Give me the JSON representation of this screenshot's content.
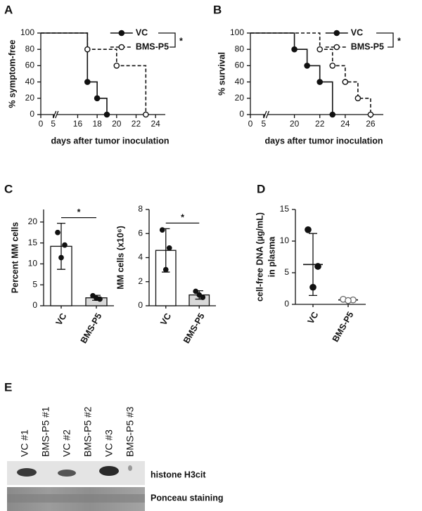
{
  "chart_data": [
    {
      "type": "step",
      "panel": "A",
      "ylabel": "% symptom-free",
      "xlabel": "days after tumor inoculation",
      "xlim": [
        0,
        25
      ],
      "xticks": [
        0,
        5,
        16,
        18,
        20,
        22,
        24
      ],
      "ylim": [
        0,
        100
      ],
      "yticks": [
        0,
        20,
        40,
        60,
        80,
        100
      ],
      "significance": "*",
      "series": [
        {
          "name": "VC",
          "color": "#111111",
          "line_style": "solid",
          "marker": "filled",
          "x": [
            0,
            17,
            18,
            19
          ],
          "values": [
            100,
            40,
            20,
            0
          ]
        },
        {
          "name": "BMS-P5",
          "color": "#111111",
          "line_style": "dashed",
          "marker": "open",
          "x": [
            0,
            17,
            20,
            23
          ],
          "values": [
            100,
            80,
            60,
            0
          ]
        }
      ]
    },
    {
      "type": "step",
      "panel": "B",
      "ylabel": "% survival",
      "xlabel": "days after tumor inoculation",
      "xlim": [
        0,
        27
      ],
      "xticks": [
        0,
        5,
        20,
        22,
        24,
        26
      ],
      "ylim": [
        0,
        100
      ],
      "yticks": [
        0,
        20,
        40,
        60,
        80,
        100
      ],
      "significance": "*",
      "series": [
        {
          "name": "VC",
          "color": "#111111",
          "line_style": "solid",
          "marker": "filled",
          "x": [
            0,
            20,
            21,
            22,
            23
          ],
          "values": [
            100,
            80,
            60,
            40,
            0
          ]
        },
        {
          "name": "BMS-P5",
          "color": "#111111",
          "line_style": "dashed",
          "marker": "open",
          "x": [
            0,
            22,
            23,
            24,
            25,
            26
          ],
          "values": [
            100,
            80,
            60,
            40,
            20,
            0
          ]
        }
      ]
    },
    {
      "type": "bar",
      "panel": "C",
      "ylabel": "Percent MM cells",
      "categories": [
        "VC",
        "BMS-P5"
      ],
      "values": [
        14.2,
        1.9
      ],
      "errors": [
        5.5,
        0.6
      ],
      "points": [
        [
          17.5,
          14.5,
          11.5
        ],
        [
          2.4,
          1.6,
          1.8
        ]
      ],
      "colors": [
        "#ffffff",
        "#d9d9d9"
      ],
      "ylim": [
        0,
        23
      ],
      "yticks": [
        0,
        5,
        10,
        15,
        20
      ],
      "significance": "*"
    },
    {
      "type": "bar",
      "ylabel": "MM cells (x10⁶)",
      "categories": [
        "VC",
        "BMS-P5"
      ],
      "values": [
        4.6,
        0.9
      ],
      "errors": [
        1.8,
        0.35
      ],
      "points": [
        [
          6.3,
          4.8,
          3.0
        ],
        [
          1.2,
          0.7,
          0.9
        ]
      ],
      "colors": [
        "#ffffff",
        "#d9d9d9"
      ],
      "ylim": [
        0,
        8
      ],
      "yticks": [
        0,
        2,
        4,
        6,
        8
      ],
      "significance": "*"
    },
    {
      "type": "dot",
      "panel": "D",
      "ylabel": [
        "cell-free DNA (µg/mL)",
        "in plasma"
      ],
      "categories": [
        "VC",
        "BMS-P5"
      ],
      "values": [
        6.3,
        0.7
      ],
      "errors": [
        4.9,
        0.1
      ],
      "points": [
        [
          11.8,
          6.0,
          2.7
        ],
        [
          0.8,
          0.7,
          0.6
        ]
      ],
      "markers": [
        "filled",
        "open"
      ],
      "ylim": [
        0,
        15
      ],
      "yticks": [
        0,
        5,
        10,
        15
      ]
    }
  ],
  "blot": {
    "panel": "E",
    "lanes": [
      "VC #1",
      "BMS-P5 #1",
      "VC #2",
      "BMS-P5 #2",
      "VC #3",
      "BMS-P5 #3"
    ],
    "rows": [
      "histone H3cit",
      "Ponceau staining"
    ]
  }
}
